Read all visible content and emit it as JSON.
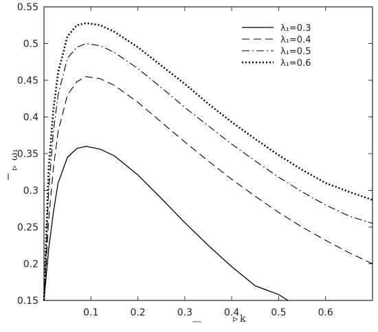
{
  "chart_data": {
    "type": "line",
    "xlabel": "k",
    "ylabel": "ω₁",
    "xlim": [
      0,
      0.7
    ],
    "ylim": [
      0.15,
      0.55
    ],
    "x_ticks": [
      "0.1",
      "0.2",
      "0.3",
      "0.4",
      "0.5",
      "0.6"
    ],
    "y_ticks": [
      "0.15",
      "0.2",
      "0.25",
      "0.3",
      "0.35",
      "0.4",
      "0.45",
      "0.5",
      "0.55"
    ],
    "legend_position": "top-right",
    "grid": false,
    "series": [
      {
        "name": "λ₁=0.3",
        "style": "solid",
        "x": [
          0.0,
          0.01,
          0.02,
          0.03,
          0.05,
          0.07,
          0.09,
          0.12,
          0.15,
          0.2,
          0.25,
          0.3,
          0.35,
          0.4,
          0.45,
          0.5,
          0.52
        ],
        "y": [
          0.15,
          0.22,
          0.27,
          0.31,
          0.345,
          0.357,
          0.36,
          0.356,
          0.347,
          0.321,
          0.289,
          0.256,
          0.225,
          0.196,
          0.17,
          0.158,
          0.15
        ]
      },
      {
        "name": "λ₁=0.4",
        "style": "dashed",
        "x": [
          0.0,
          0.01,
          0.02,
          0.03,
          0.05,
          0.07,
          0.09,
          0.12,
          0.15,
          0.2,
          0.25,
          0.3,
          0.35,
          0.4,
          0.45,
          0.5,
          0.55,
          0.6,
          0.65,
          0.7
        ],
        "y": [
          0.15,
          0.26,
          0.33,
          0.38,
          0.43,
          0.448,
          0.455,
          0.452,
          0.443,
          0.42,
          0.393,
          0.366,
          0.34,
          0.315,
          0.292,
          0.27,
          0.25,
          0.232,
          0.215,
          0.2
        ]
      },
      {
        "name": "λ₁=0.5",
        "style": "dashdot",
        "x": [
          0.0,
          0.01,
          0.02,
          0.03,
          0.05,
          0.07,
          0.09,
          0.12,
          0.15,
          0.2,
          0.25,
          0.3,
          0.35,
          0.4,
          0.45,
          0.5,
          0.55,
          0.6,
          0.65,
          0.7
        ],
        "y": [
          0.15,
          0.3,
          0.38,
          0.43,
          0.48,
          0.495,
          0.5,
          0.497,
          0.488,
          0.466,
          0.44,
          0.413,
          0.388,
          0.363,
          0.34,
          0.318,
          0.298,
          0.28,
          0.265,
          0.255
        ]
      },
      {
        "name": "λ₁=0.6",
        "style": "dotted",
        "x": [
          0.0,
          0.01,
          0.02,
          0.03,
          0.05,
          0.07,
          0.09,
          0.12,
          0.15,
          0.2,
          0.25,
          0.3,
          0.35,
          0.4,
          0.45,
          0.5,
          0.55,
          0.6,
          0.65,
          0.7
        ],
        "y": [
          0.15,
          0.33,
          0.41,
          0.46,
          0.51,
          0.525,
          0.528,
          0.525,
          0.516,
          0.495,
          0.47,
          0.445,
          0.418,
          0.393,
          0.37,
          0.348,
          0.328,
          0.31,
          0.298,
          0.287
        ]
      }
    ]
  },
  "colors": {
    "line": "#000000",
    "axis": "#333333",
    "green_marker": "#2e8b2e"
  }
}
